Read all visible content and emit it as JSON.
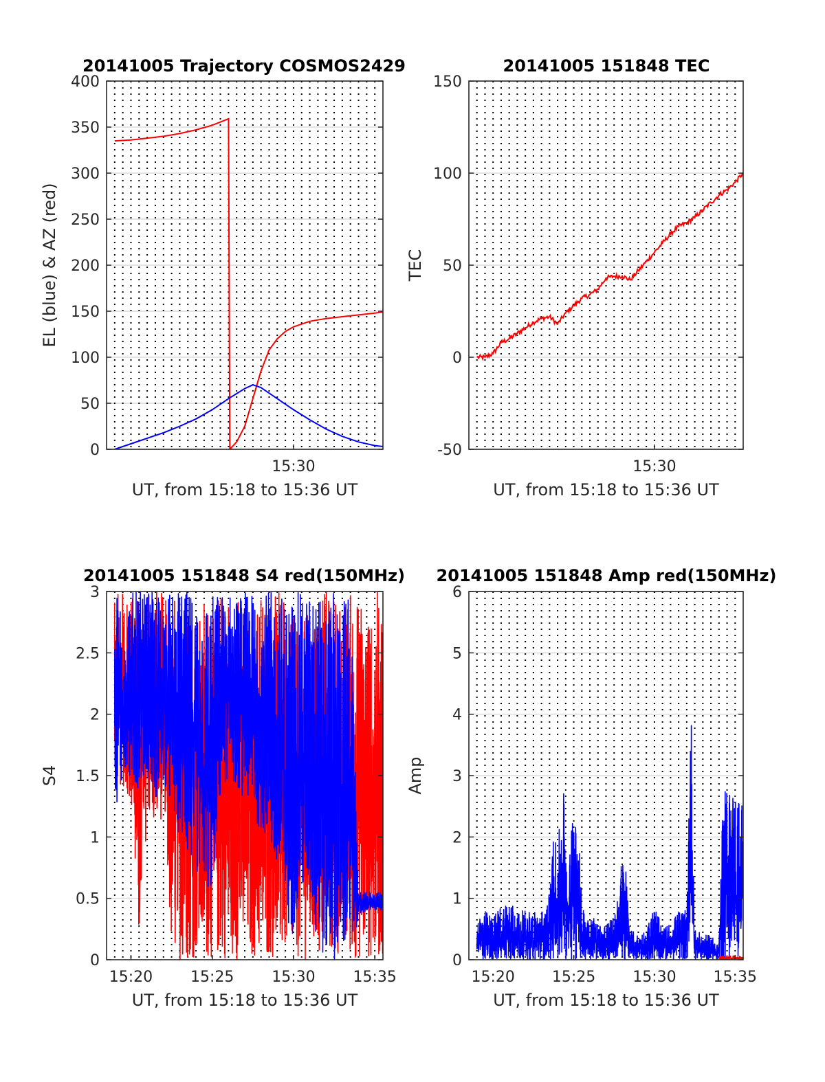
{
  "colors": {
    "red": "#ff0000",
    "blue": "#0000ff",
    "grid_horizontal": "#dcdcdc",
    "grid_vertical_dotted": "#000000",
    "axes": "#262626"
  },
  "chart_data": [
    {
      "id": "trajectory",
      "type": "line",
      "title": "20141005 Trajectory COSMOS2429",
      "xlabel": "UT, from 15:18 to 15:36 UT",
      "ylabel": "EL (blue) & AZ (red)",
      "xlim": [
        "15:18:30",
        "15:35:30"
      ],
      "ylim": [
        0,
        400
      ],
      "yticks": [
        "0",
        "50",
        "100",
        "150",
        "200",
        "250",
        "300",
        "350",
        "400"
      ],
      "xtick_labels": [
        {
          "x": "15:30",
          "label": "15:30"
        }
      ],
      "grid": "horizontal solid at y ticks; vertical dotted every 30 s",
      "series": [
        {
          "color": "red",
          "points": [
            [
              "15:19:00",
              335
            ],
            [
              "15:20:00",
              336
            ],
            [
              "15:21:00",
              338
            ],
            [
              "15:22:00",
              340
            ],
            [
              "15:23:00",
              343
            ],
            [
              "15:24:00",
              347
            ],
            [
              "15:25:00",
              352
            ],
            [
              "15:26:00",
              359
            ],
            [
              "15:26:05",
              0
            ],
            [
              "15:26:30",
              8
            ],
            [
              "15:27:00",
              25
            ],
            [
              "15:27:30",
              55
            ],
            [
              "15:28:00",
              85
            ],
            [
              "15:28:30",
              108
            ],
            [
              "15:29:00",
              120
            ],
            [
              "15:29:30",
              128
            ],
            [
              "15:30:00",
              133
            ],
            [
              "15:31:00",
              139
            ],
            [
              "15:32:00",
              142
            ],
            [
              "15:33:00",
              144
            ],
            [
              "15:34:00",
              146
            ],
            [
              "15:35:00",
              148
            ],
            [
              "15:35:30",
              149
            ]
          ]
        },
        {
          "color": "blue",
          "points": [
            [
              "15:19:00",
              0
            ],
            [
              "15:20:00",
              6
            ],
            [
              "15:21:00",
              12
            ],
            [
              "15:22:00",
              18
            ],
            [
              "15:23:00",
              25
            ],
            [
              "15:24:00",
              33
            ],
            [
              "15:25:00",
              43
            ],
            [
              "15:26:00",
              55
            ],
            [
              "15:27:00",
              66
            ],
            [
              "15:27:30",
              70
            ],
            [
              "15:28:00",
              67
            ],
            [
              "15:29:00",
              55
            ],
            [
              "15:30:00",
              43
            ],
            [
              "15:31:00",
              32
            ],
            [
              "15:32:00",
              22
            ],
            [
              "15:33:00",
              14
            ],
            [
              "15:34:00",
              8
            ],
            [
              "15:35:00",
              4
            ],
            [
              "15:35:30",
              3
            ]
          ]
        }
      ]
    },
    {
      "id": "tec",
      "type": "line",
      "title": "20141005 151848 TEC",
      "xlabel": "UT, from 15:18 to 15:36 UT",
      "ylabel": "TEC",
      "xlim": [
        "15:18:30",
        "15:35:30"
      ],
      "ylim": [
        -50,
        150
      ],
      "yticks": [
        "-50",
        "0",
        "50",
        "100",
        "150"
      ],
      "xtick_labels": [
        {
          "x": "15:30",
          "label": "15:30"
        }
      ],
      "grid": "horizontal solid at y ticks; vertical dotted every 30 s",
      "series": [
        {
          "color": "red",
          "points": [
            [
              "15:19:00",
              0
            ],
            [
              "15:19:30",
              0
            ],
            [
              "15:20:00",
              2
            ],
            [
              "15:20:30",
              8
            ],
            [
              "15:21:00",
              10
            ],
            [
              "15:21:30",
              13
            ],
            [
              "15:22:00",
              16
            ],
            [
              "15:22:30",
              19
            ],
            [
              "15:23:00",
              21
            ],
            [
              "15:23:30",
              22
            ],
            [
              "15:24:00",
              18
            ],
            [
              "15:24:30",
              24
            ],
            [
              "15:25:00",
              28
            ],
            [
              "15:25:30",
              32
            ],
            [
              "15:26:00",
              34
            ],
            [
              "15:26:30",
              37
            ],
            [
              "15:27:00",
              43
            ],
            [
              "15:27:30",
              44
            ],
            [
              "15:28:00",
              44
            ],
            [
              "15:28:30",
              42
            ],
            [
              "15:29:00",
              47
            ],
            [
              "15:29:30",
              52
            ],
            [
              "15:30:00",
              57
            ],
            [
              "15:30:30",
              62
            ],
            [
              "15:31:00",
              67
            ],
            [
              "15:31:30",
              71
            ],
            [
              "15:32:00",
              73
            ],
            [
              "15:32:30",
              76
            ],
            [
              "15:33:00",
              80
            ],
            [
              "15:33:30",
              84
            ],
            [
              "15:34:00",
              88
            ],
            [
              "15:34:30",
              91
            ],
            [
              "15:35:00",
              95
            ],
            [
              "15:35:30",
              100
            ]
          ]
        }
      ]
    },
    {
      "id": "s4",
      "type": "line",
      "title": "20141005 151848 S4 red(150MHz)",
      "xlabel": "UT, from 15:18 to 15:36 UT",
      "ylabel": "S4",
      "xlim": [
        "15:18:30",
        "15:35:30"
      ],
      "ylim": [
        0,
        3
      ],
      "yticks": [
        "0",
        "0.5",
        "1",
        "1.5",
        "2",
        "2.5",
        "3"
      ],
      "xtick_labels": [
        {
          "x": "15:20",
          "label": "15:20"
        },
        {
          "x": "15:25",
          "label": "15:25"
        },
        {
          "x": "15:30",
          "label": "15:30"
        },
        {
          "x": "15:35",
          "label": "15:35"
        }
      ],
      "grid": "horizontal solid at y ticks; vertical dotted every 30 s",
      "series": [
        {
          "color": "red",
          "description_values": "S4 red: dense fluctuating trace 15:19-15:35:30, high band 1.2-3 (clipped at 3) before 15:26, spikes down to 0 after 15:22",
          "envelopes": [
            [
              "15:19:00",
              1.4,
              3
            ],
            [
              "15:19:30",
              1.4,
              3
            ],
            [
              "15:20:00",
              1.3,
              3
            ],
            [
              "15:20:30",
              0,
              3
            ],
            [
              "15:21:00",
              1.2,
              3
            ],
            [
              "15:21:30",
              1.0,
              3
            ],
            [
              "15:22:00",
              1.2,
              3
            ],
            [
              "15:22:30",
              0,
              3
            ],
            [
              "15:23:00",
              0,
              3
            ],
            [
              "15:23:30",
              0,
              3
            ],
            [
              "15:24:00",
              0,
              3
            ],
            [
              "15:24:30",
              0,
              3
            ],
            [
              "15:25:00",
              0,
              3
            ],
            [
              "15:25:30",
              0,
              3
            ],
            [
              "15:26:00",
              0,
              3
            ],
            [
              "15:26:30",
              0,
              3
            ],
            [
              "15:27:00",
              0,
              3
            ],
            [
              "15:27:30",
              0,
              3
            ],
            [
              "15:28:00",
              0,
              3
            ],
            [
              "15:28:30",
              0,
              3
            ],
            [
              "15:29:00",
              0,
              3
            ],
            [
              "15:29:30",
              0,
              3
            ],
            [
              "15:30:00",
              0,
              3
            ],
            [
              "15:30:30",
              0,
              3
            ],
            [
              "15:31:00",
              0,
              3
            ],
            [
              "15:31:30",
              0,
              3
            ],
            [
              "15:32:00",
              0,
              3
            ],
            [
              "15:32:30",
              0,
              3
            ],
            [
              "15:33:00",
              0,
              3
            ],
            [
              "15:33:30",
              0,
              3
            ],
            [
              "15:34:00",
              0,
              3
            ],
            [
              "15:34:30",
              0,
              3
            ],
            [
              "15:35:00",
              0,
              3
            ],
            [
              "15:35:30",
              0,
              3
            ]
          ]
        },
        {
          "color": "blue",
          "envelopes": [
            [
              "15:19:00",
              1.2,
              3
            ],
            [
              "15:19:30",
              1.5,
              3
            ],
            [
              "15:20:00",
              1.4,
              3
            ],
            [
              "15:20:30",
              1.4,
              3
            ],
            [
              "15:21:00",
              1.5,
              3
            ],
            [
              "15:21:30",
              1.3,
              3
            ],
            [
              "15:22:00",
              1.4,
              3
            ],
            [
              "15:22:30",
              1.2,
              3
            ],
            [
              "15:23:00",
              1.0,
              3
            ],
            [
              "15:23:30",
              0.8,
              3
            ],
            [
              "15:24:00",
              0.7,
              3
            ],
            [
              "15:24:30",
              0.6,
              3
            ],
            [
              "15:25:00",
              0.5,
              3
            ],
            [
              "15:25:30",
              1.3,
              3
            ],
            [
              "15:26:00",
              1.5,
              3
            ],
            [
              "15:26:30",
              1.4,
              3
            ],
            [
              "15:27:00",
              1.3,
              3
            ],
            [
              "15:27:30",
              1.2,
              3
            ],
            [
              "15:28:00",
              1.0,
              3
            ],
            [
              "15:28:30",
              1.0,
              3
            ],
            [
              "15:29:00",
              0.5,
              3
            ],
            [
              "15:29:30",
              0.3,
              3
            ],
            [
              "15:30:00",
              0.2,
              3
            ],
            [
              "15:30:30",
              0.5,
              3
            ],
            [
              "15:31:00",
              0.5,
              3
            ],
            [
              "15:31:30",
              0,
              3
            ],
            [
              "15:32:00",
              0,
              3
            ],
            [
              "15:32:30",
              0,
              3
            ],
            [
              "15:33:00",
              0,
              3
            ],
            [
              "15:33:30",
              0,
              3
            ],
            [
              "15:34:00",
              0.35,
              0.55
            ],
            [
              "15:34:30",
              0.4,
              0.55
            ],
            [
              "15:35:00",
              0.4,
              0.55
            ],
            [
              "15:35:30",
              0.4,
              0.55
            ]
          ]
        }
      ]
    },
    {
      "id": "amp",
      "type": "line",
      "title": "20141005 151848 Amp red(150MHz)",
      "xlabel": "UT, from 15:18 to 15:36 UT",
      "ylabel": "Amp",
      "xlim": [
        "15:18:30",
        "15:35:30"
      ],
      "ylim": [
        0,
        6
      ],
      "yticks": [
        "0",
        "1",
        "2",
        "3",
        "4",
        "5",
        "6"
      ],
      "xtick_labels": [
        {
          "x": "15:20",
          "label": "15:20"
        },
        {
          "x": "15:25",
          "label": "15:25"
        },
        {
          "x": "15:30",
          "label": "15:30"
        },
        {
          "x": "15:35",
          "label": "15:35"
        }
      ],
      "grid": "horizontal solid at y ticks; vertical dotted every 30 s",
      "series": [
        {
          "color": "blue",
          "envelopes": [
            [
              "15:19:00",
              0,
              0.7
            ],
            [
              "15:19:30",
              0,
              0.8
            ],
            [
              "15:20:00",
              0,
              0.7
            ],
            [
              "15:20:30",
              0,
              0.9
            ],
            [
              "15:21:00",
              0,
              1.0
            ],
            [
              "15:21:30",
              0,
              0.8
            ],
            [
              "15:22:00",
              0,
              0.8
            ],
            [
              "15:22:30",
              0,
              0.8
            ],
            [
              "15:23:00",
              0,
              0.8
            ],
            [
              "15:23:30",
              0,
              1.1
            ],
            [
              "15:23:45",
              0,
              2.1
            ],
            [
              "15:24:00",
              0,
              1.8
            ],
            [
              "15:24:20",
              0,
              2.9
            ],
            [
              "15:24:40",
              0,
              1.3
            ],
            [
              "15:25:00",
              0,
              3.0
            ],
            [
              "15:25:15",
              0,
              2.5
            ],
            [
              "15:25:30",
              0,
              0.9
            ],
            [
              "15:26:00",
              0,
              0.8
            ],
            [
              "15:26:30",
              0,
              0.6
            ],
            [
              "15:27:00",
              0,
              0.6
            ],
            [
              "15:27:30",
              0,
              0.7
            ],
            [
              "15:28:00",
              0,
              1.7
            ],
            [
              "15:28:15",
              0,
              1.5
            ],
            [
              "15:28:30",
              0,
              0.5
            ],
            [
              "15:29:00",
              0,
              0.4
            ],
            [
              "15:29:30",
              0,
              0.5
            ],
            [
              "15:30:00",
              0,
              0.9
            ],
            [
              "15:30:30",
              0,
              0.5
            ],
            [
              "15:31:00",
              0,
              0.6
            ],
            [
              "15:31:30",
              0,
              0.8
            ],
            [
              "15:32:00",
              0,
              0.8
            ],
            [
              "15:32:15",
              0,
              4.6
            ],
            [
              "15:32:30",
              0,
              0.5
            ],
            [
              "15:33:00",
              0,
              0.4
            ],
            [
              "15:33:30",
              0,
              0.4
            ],
            [
              "15:34:00",
              0,
              0.3
            ],
            [
              "15:34:15",
              0,
              2.7
            ],
            [
              "15:34:30",
              0,
              2.8
            ],
            [
              "15:35:00",
              0,
              2.8
            ],
            [
              "15:35:30",
              0,
              2.6
            ]
          ]
        },
        {
          "color": "red",
          "envelopes": [
            [
              "15:34:00",
              0,
              0.05
            ],
            [
              "15:34:30",
              0,
              0.07
            ],
            [
              "15:35:00",
              0,
              0.06
            ],
            [
              "15:35:30",
              0,
              0.05
            ]
          ]
        }
      ]
    }
  ]
}
